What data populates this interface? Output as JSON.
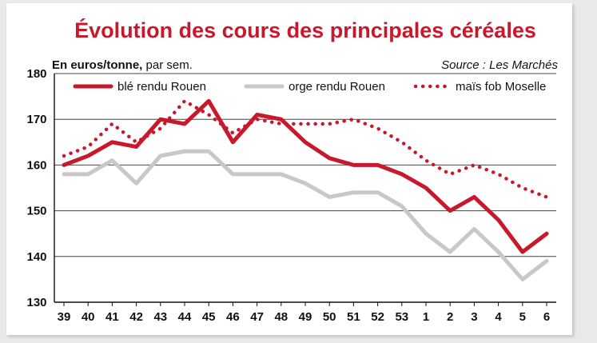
{
  "chart_data": {
    "type": "line",
    "title": "Évolution des cours des principales céréales",
    "ylabel_bold": "En euros/tonne,",
    "ylabel_rest": " par sem.",
    "source": "Source : Les Marchés",
    "categories": [
      "39",
      "40",
      "41",
      "42",
      "43",
      "44",
      "45",
      "46",
      "47",
      "48",
      "49",
      "50",
      "51",
      "52",
      "53",
      "1",
      "2",
      "3",
      "4",
      "5",
      "6"
    ],
    "ylim": [
      130,
      180
    ],
    "yticks": [
      130,
      140,
      150,
      160,
      170,
      180
    ],
    "grid": true,
    "legend_position": "top",
    "series": [
      {
        "name": "blé rendu Rouen",
        "color": "#c8182b",
        "style": "solid",
        "values": [
          160,
          162,
          165,
          164,
          170,
          169,
          174,
          165,
          171,
          170,
          165,
          161.5,
          160,
          160,
          158,
          155,
          150,
          153,
          148,
          141,
          145
        ]
      },
      {
        "name": "orge rendu Rouen",
        "color": "#c8c8c8",
        "style": "solid",
        "values": [
          158,
          158,
          161,
          156,
          162,
          163,
          163,
          158,
          158,
          158,
          156,
          153,
          154,
          154,
          151,
          145,
          141,
          146,
          141,
          135,
          139
        ]
      },
      {
        "name": "maïs fob Moselle",
        "color": "#c8182b",
        "style": "dotted",
        "values": [
          162,
          164,
          169,
          165,
          168,
          174,
          171,
          167,
          170,
          169,
          169,
          169,
          170,
          168,
          165,
          161,
          158,
          160,
          158,
          155,
          153
        ]
      }
    ]
  }
}
